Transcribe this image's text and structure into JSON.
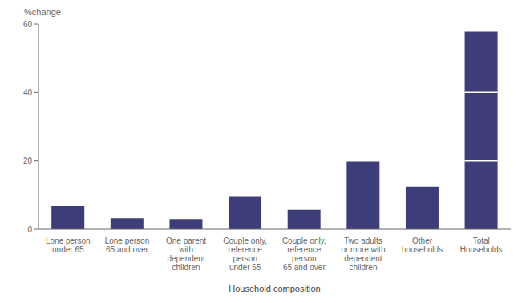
{
  "chart_data": {
    "type": "bar",
    "xlabel": "Household composition",
    "ylabel": "%change",
    "categories": [
      "Lone person\nunder 65",
      "Lone person\n65 and over",
      "One parent\nwith\ndependent\nchildren",
      "Couple only,\nreference\nperson\nunder 65",
      "Couple only,\nreference\nperson\n65 and over",
      "Two adults\nor more with\ndependent\nchildren",
      "Other\nhouseholds",
      "Total\nHouseholds"
    ],
    "values": [
      6.8,
      3.2,
      3.0,
      9.5,
      5.7,
      19.8,
      12.5,
      57.8
    ],
    "color": "#3d3d7a",
    "dividers": {
      "values": [
        20.0,
        40.0
      ],
      "color": "#ffffff"
    },
    "ylim": [
      0,
      60
    ],
    "yticks": [
      0,
      20,
      40,
      60
    ],
    "grid": false
  }
}
